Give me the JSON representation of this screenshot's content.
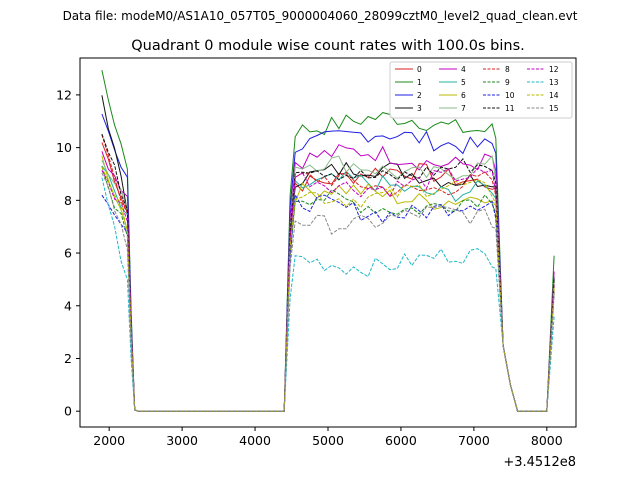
{
  "chart_data": {
    "type": "line",
    "suptitle": "Data file: modeM0/AS1A10_057T05_9000004060_28099cztM0_level2_quad_clean.evt",
    "title": "Quadrant 0 module wise count rates with 100.0s bins.",
    "xlabel": "",
    "ylabel": "",
    "x_offset_label": "+3.4512e8",
    "xlim": [
      1600,
      8400
    ],
    "ylim": [
      -0.6,
      13.4
    ],
    "x_ticks": [
      2000,
      3000,
      4000,
      5000,
      6000,
      7000,
      8000
    ],
    "y_ticks": [
      0,
      2,
      4,
      6,
      8,
      10,
      12
    ],
    "legend_position": "top-right",
    "segments": [
      {
        "x_start": 1900,
        "x_end": 2250
      },
      {
        "x_start": 2300,
        "x_end": 4400
      },
      {
        "x_start": 4400,
        "x_end": 7300
      },
      {
        "x_start": 7300,
        "x_end": 8100
      }
    ],
    "series": [
      {
        "name": "0",
        "color": "#d62020",
        "dash": "solid",
        "level": 8.9,
        "start": 10.2,
        "end": 4.9
      },
      {
        "name": "1",
        "color": "#1a8a1a",
        "dash": "solid",
        "level": 10.9,
        "start": 12.7,
        "end": 5.9
      },
      {
        "name": "2",
        "color": "#1f1fe0",
        "dash": "solid",
        "level": 10.3,
        "start": 11.3,
        "end": 5.1
      },
      {
        "name": "3",
        "color": "#111111",
        "dash": "solid",
        "level": 9.0,
        "start": 12.0,
        "end": 5.0
      },
      {
        "name": "4",
        "color": "#c000c0",
        "dash": "solid",
        "level": 9.6,
        "start": 9.8,
        "end": 5.3
      },
      {
        "name": "5",
        "color": "#20b0a0",
        "dash": "solid",
        "level": 8.5,
        "start": 9.3,
        "end": 4.8
      },
      {
        "name": "6",
        "color": "#b8b800",
        "dash": "solid",
        "level": 8.2,
        "start": 9.6,
        "end": 4.7
      },
      {
        "name": "7",
        "color": "#88bb88",
        "dash": "solid",
        "level": 9.2,
        "start": 9.4,
        "end": 4.9
      },
      {
        "name": "8",
        "color": "#d62020",
        "dash": "dashed",
        "level": 8.6,
        "start": 10.6,
        "end": 4.8
      },
      {
        "name": "9",
        "color": "#1a8a1a",
        "dash": "dashed",
        "level": 7.9,
        "start": 9.1,
        "end": 4.6
      },
      {
        "name": "10",
        "color": "#1f1fe0",
        "dash": "dashed",
        "level": 7.7,
        "start": 8.4,
        "end": 4.5
      },
      {
        "name": "11",
        "color": "#111111",
        "dash": "dashed",
        "level": 9.1,
        "start": 10.5,
        "end": 5.0
      },
      {
        "name": "12",
        "color": "#c000c0",
        "dash": "dashed",
        "level": 8.7,
        "start": 9.0,
        "end": 4.8
      },
      {
        "name": "13",
        "color": "#20b8c8",
        "dash": "dashed",
        "level": 5.7,
        "start": 8.9,
        "end": 3.6
      },
      {
        "name": "14",
        "color": "#b8b800",
        "dash": "dashed",
        "level": 8.3,
        "start": 9.5,
        "end": 4.7
      },
      {
        "name": "15",
        "color": "#888888",
        "dash": "dashed",
        "level": 7.3,
        "start": 9.2,
        "end": 4.4
      }
    ]
  }
}
